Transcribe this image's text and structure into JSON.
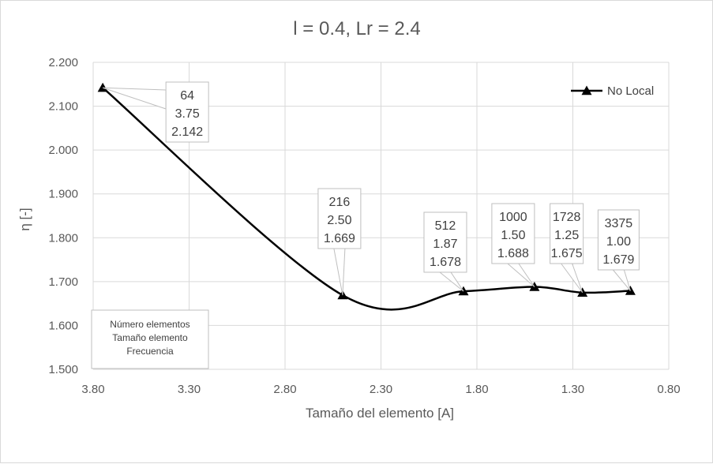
{
  "chart_data": {
    "type": "line",
    "title": "l = 0.4, Lr = 2.4",
    "xlabel": "Tamaño del elemento [A]",
    "ylabel": "η [-]",
    "xlim": [
      3.8,
      0.8
    ],
    "x_reversed": true,
    "ylim": [
      1.5,
      2.2
    ],
    "x_ticks": [
      "3.80",
      "3.30",
      "2.80",
      "2.30",
      "1.80",
      "1.30",
      "0.80"
    ],
    "y_ticks": [
      "2.200",
      "2.100",
      "2.000",
      "1.900",
      "1.800",
      "1.700",
      "1.600",
      "1.500"
    ],
    "grid": true,
    "smooth": true,
    "legend_position": "top-right",
    "series": [
      {
        "name": "No Local",
        "color": "#000000",
        "marker": "triangle",
        "points": [
          {
            "x": 3.75,
            "y": 2.142,
            "label": [
              "64",
              "3.75",
              "2.142"
            ]
          },
          {
            "x": 2.5,
            "y": 1.669,
            "label": [
              "216",
              "2.50",
              "1.669"
            ]
          },
          {
            "x": 1.87,
            "y": 1.678,
            "label": [
              "512",
              "1.87",
              "1.678"
            ]
          },
          {
            "x": 1.5,
            "y": 1.688,
            "label": [
              "1000",
              "1.50",
              "1.688"
            ]
          },
          {
            "x": 1.25,
            "y": 1.675,
            "label": [
              "1728",
              "1.25",
              "1.675"
            ]
          },
          {
            "x": 1.0,
            "y": 1.679,
            "label": [
              "3375",
              "1.00",
              "1.679"
            ]
          }
        ]
      }
    ],
    "label_key": [
      "Número elementos",
      "Tamaño elemento",
      "Frecuencia"
    ]
  }
}
